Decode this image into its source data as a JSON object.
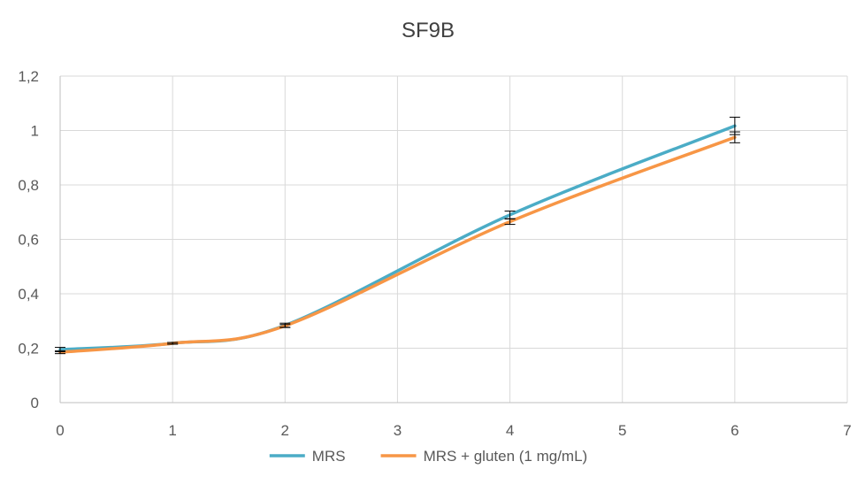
{
  "chart_data": {
    "type": "line",
    "title": "SF9B",
    "xlabel": "",
    "ylabel": "",
    "xlim": [
      0,
      7
    ],
    "ylim": [
      0,
      1.2
    ],
    "x_ticks": [
      "0",
      "1",
      "2",
      "3",
      "4",
      "5",
      "6",
      "7"
    ],
    "y_ticks": [
      "0",
      "0,2",
      "0,4",
      "0,6",
      "0,8",
      "1",
      "1,2"
    ],
    "grid": true,
    "smooth": true,
    "legend": "bottom",
    "series": [
      {
        "name": "MRS",
        "color": "#4bacc6",
        "x": [
          0,
          1,
          2,
          4,
          6
        ],
        "y": [
          0.195,
          0.218,
          0.284,
          0.69,
          1.017
        ],
        "error": [
          0.008,
          0.003,
          0.008,
          0.014,
          0.032
        ]
      },
      {
        "name": "MRS + gluten (1 mg/mL)",
        "color": "#f79646",
        "x": [
          0,
          1,
          2,
          4,
          6
        ],
        "y": [
          0.185,
          0.218,
          0.282,
          0.665,
          0.975
        ],
        "error": [
          0.005,
          0.003,
          0.005,
          0.01,
          0.02
        ]
      }
    ]
  }
}
